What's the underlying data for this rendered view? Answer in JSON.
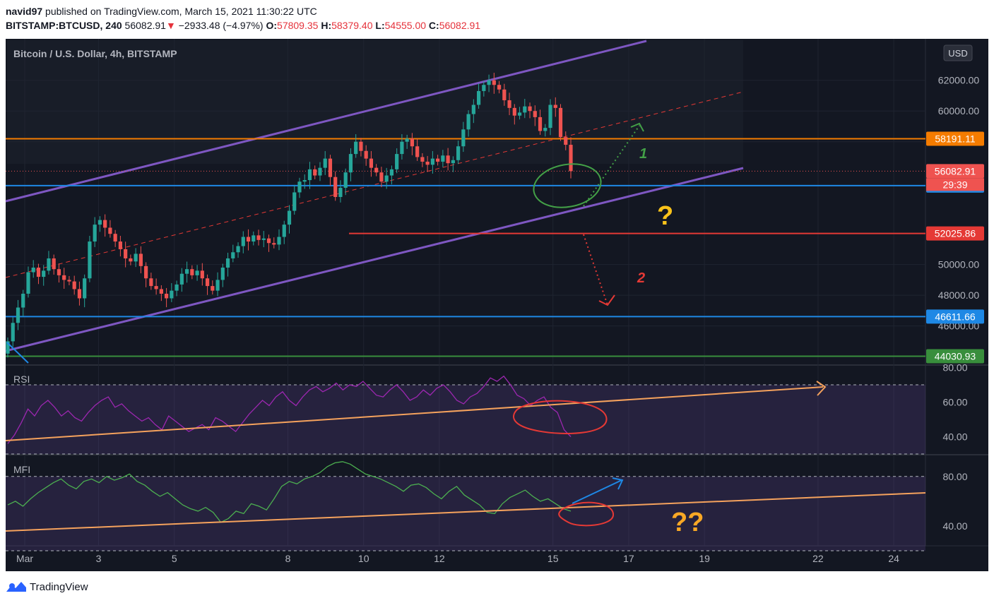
{
  "header": {
    "publisher": "navid97",
    "published_text": "published on TradingView.com, March 15, 2021 11:30:22 UTC",
    "symbol": "BITSTAMP:BTCUSD, 240",
    "last": "56082.91",
    "change_arrow": "▼",
    "change": "−2933.48 (−4.97%)",
    "o_label": "O:",
    "o_value": "57809.35",
    "h_label": "H:",
    "h_value": "58379.40",
    "l_label": "L:",
    "l_value": "54555.00",
    "c_label": "C:",
    "c_value": "56082.91"
  },
  "footer": {
    "brand": "TradingView"
  },
  "chart_data": {
    "type": "candlestick",
    "title": "Bitcoin / U.S. Dollar, 4h, BITSTAMP",
    "currency_button": "USD",
    "colors": {
      "background": "#131722",
      "up": "#26a69a",
      "down": "#ef5350",
      "channel": "#7e57c2",
      "resistance": "#f57c00",
      "support": "#1e88e5",
      "target": "#e53935",
      "floor": "#388e3c"
    },
    "price_axis": {
      "ylim": [
        43500,
        64700
      ],
      "ticks": [
        "62000.00",
        "60000.00",
        "58000.00",
        "50000.00",
        "48000.00",
        "46000.00"
      ]
    },
    "time_axis": {
      "labels": [
        {
          "label": "Mar",
          "day": 1.05
        },
        {
          "label": "3",
          "day": 3
        },
        {
          "label": "5",
          "day": 5
        },
        {
          "label": "8",
          "day": 8
        },
        {
          "label": "10",
          "day": 10
        },
        {
          "label": "12",
          "day": 12
        },
        {
          "label": "15",
          "day": 15
        },
        {
          "label": "17",
          "day": 17
        },
        {
          "label": "19",
          "day": 19
        },
        {
          "label": "22",
          "day": 22
        },
        {
          "label": "24",
          "day": 24
        }
      ]
    },
    "series": [
      {
        "name": "BTCUSD",
        "close": [
          45000,
          46200,
          47200,
          48100,
          49500,
          49800,
          49200,
          49600,
          50400,
          49700,
          49300,
          49000,
          48900,
          48400,
          47800,
          49100,
          51500,
          52600,
          52900,
          52400,
          52000,
          51500,
          51000,
          50400,
          50200,
          50700,
          49900,
          49100,
          48600,
          48400,
          48100,
          47800,
          48300,
          48700,
          49400,
          49700,
          49300,
          49600,
          49100,
          48600,
          48300,
          49000,
          49800,
          50400,
          50800,
          51200,
          51800,
          51500,
          51900,
          51600,
          51700,
          51400,
          51300,
          51800,
          52600,
          53500,
          54700,
          55400,
          55500,
          56200,
          55800,
          56300,
          56900,
          55700,
          54400,
          55000,
          56000,
          57200,
          58000,
          57400,
          56900,
          56300,
          56000,
          55400,
          55800,
          56200,
          57200,
          58000,
          58200,
          57700,
          57000,
          56700,
          56500,
          56900,
          56700,
          57100,
          56600,
          56800,
          57700,
          58800,
          59800,
          60400,
          61300,
          61700,
          62000,
          61700,
          61400,
          60700,
          60200,
          59700,
          59900,
          60300,
          60000,
          59600,
          58700,
          58900,
          60400,
          60200,
          58300,
          57800,
          56082.91
        ],
        "levels": [
          {
            "price": 58191.11,
            "label": "58191.11",
            "style": "solid"
          },
          {
            "price": 55143.08,
            "label": "55143.08",
            "style": "solid"
          },
          {
            "price": 52025.86,
            "label": "52025.86",
            "style": "solid"
          },
          {
            "price": 46611.66,
            "label": "46611.66",
            "style": "solid"
          },
          {
            "price": 44030.93,
            "label": "44030.93",
            "style": "solid"
          },
          {
            "price": 56082.91,
            "label": "56082.91",
            "style": "dotted"
          }
        ],
        "countdown": "29:39"
      }
    ],
    "annotations": [
      "1",
      "?",
      "2"
    ],
    "rsi": {
      "label": "RSI",
      "ylim": [
        30,
        81
      ],
      "ticks": [
        "80.00",
        "60.00",
        "40.00"
      ],
      "bands": [
        70,
        30
      ],
      "values": [
        36,
        41,
        48,
        56,
        52,
        58,
        61,
        57,
        52,
        55,
        51,
        49,
        54,
        58,
        61,
        63,
        57,
        59,
        55,
        52,
        49,
        51,
        47,
        44,
        52,
        49,
        46,
        43,
        45,
        47,
        44,
        51,
        49,
        46,
        43,
        48,
        53,
        57,
        61,
        58,
        63,
        66,
        61,
        58,
        63,
        67,
        69,
        66,
        68,
        71,
        67,
        70,
        69,
        72,
        68,
        64,
        63,
        67,
        70,
        66,
        61,
        63,
        67,
        64,
        68,
        70,
        66,
        61,
        59,
        63,
        65,
        69,
        74,
        72,
        75,
        70,
        64,
        62,
        58,
        61,
        63,
        57,
        54,
        44,
        40
      ],
      "annotations": [
        "?"
      ]
    },
    "mfi": {
      "label": "MFI",
      "ylim": [
        24,
        97
      ],
      "ticks": [
        "80.00",
        "40.00"
      ],
      "bands": [
        80,
        20
      ],
      "values": [
        57,
        60,
        56,
        62,
        67,
        71,
        75,
        78,
        73,
        70,
        76,
        78,
        75,
        80,
        77,
        79,
        82,
        76,
        73,
        68,
        64,
        67,
        62,
        57,
        54,
        52,
        55,
        51,
        43,
        46,
        52,
        50,
        58,
        56,
        53,
        62,
        72,
        76,
        74,
        78,
        80,
        83,
        88,
        91,
        92,
        90,
        86,
        82,
        80,
        78,
        75,
        72,
        68,
        73,
        74,
        71,
        66,
        62,
        68,
        72,
        65,
        61,
        57,
        51,
        50,
        58,
        63,
        66,
        69,
        64,
        60,
        62,
        58,
        54,
        52
      ]
    },
    "rsi_mfi_annotation": "??"
  }
}
